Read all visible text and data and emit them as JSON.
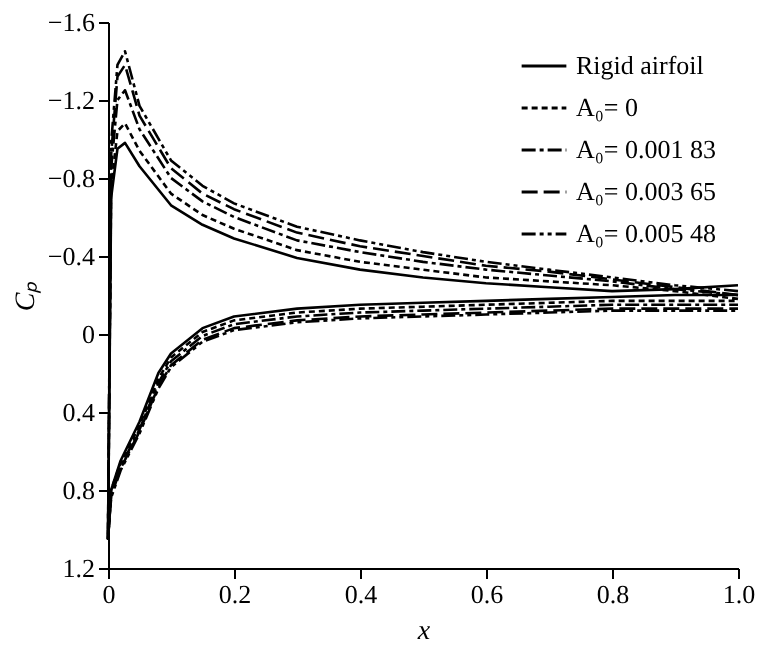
{
  "chart_data": {
    "type": "line",
    "xlabel": "x",
    "ylabel": "Cₚ",
    "xlim": [
      0,
      1.0
    ],
    "xticks": [
      0,
      0.2,
      0.4,
      0.6,
      0.8,
      {
        "value": 1.0,
        "label": "1.0"
      }
    ],
    "ylim": [
      1.2,
      -1.6
    ],
    "yticks": [
      {
        "value": 1.2,
        "label": "1.2"
      },
      0.8,
      0.4,
      0,
      {
        "value": -0.4,
        "label": "−0.4"
      },
      {
        "value": -0.8,
        "label": "−0.8"
      },
      {
        "value": -1.2,
        "label": "−1.2"
      },
      {
        "value": -1.6,
        "label": "−1.6"
      }
    ],
    "legend": "top right",
    "grid": false,
    "series": [
      {
        "name": "Rigid airfoil",
        "color": "#000000",
        "line_style": "solid",
        "x": [
          1.0,
          0.9,
          0.8,
          0.7,
          0.6,
          0.5,
          0.4,
          0.3,
          0.2,
          0.15,
          0.1,
          0.05,
          0.027,
          0.015,
          0.005,
          0,
          0.005,
          0.02,
          0.05,
          0.08,
          0.1,
          0.15,
          0.2,
          0.3,
          0.4,
          0.5,
          0.6,
          0.7,
          0.8,
          0.9,
          1.0
        ],
        "values": [
          -0.25,
          -0.23,
          -0.22,
          -0.24,
          -0.26,
          -0.29,
          -0.33,
          -0.39,
          -0.49,
          -0.56,
          -0.66,
          -0.86,
          -0.98,
          -0.95,
          -0.7,
          1.05,
          0.8,
          0.65,
          0.45,
          0.2,
          0.1,
          -0.03,
          -0.09,
          -0.13,
          -0.15,
          -0.16,
          -0.17,
          -0.18,
          -0.19,
          -0.2,
          -0.2
        ]
      },
      {
        "name": "A₀= 0",
        "color": "#000000",
        "line_style": "dotted",
        "x": [
          1.0,
          0.9,
          0.8,
          0.7,
          0.6,
          0.5,
          0.4,
          0.3,
          0.2,
          0.15,
          0.1,
          0.05,
          0.027,
          0.015,
          0.005,
          0,
          0.005,
          0.02,
          0.05,
          0.08,
          0.1,
          0.15,
          0.2,
          0.3,
          0.4,
          0.5,
          0.6,
          0.7,
          0.8,
          0.9,
          1.0
        ],
        "values": [
          -0.18,
          -0.22,
          -0.25,
          -0.27,
          -0.29,
          -0.33,
          -0.37,
          -0.43,
          -0.54,
          -0.61,
          -0.72,
          -0.94,
          -1.08,
          -1.04,
          -0.75,
          1.05,
          0.8,
          0.66,
          0.47,
          0.23,
          0.12,
          -0.01,
          -0.07,
          -0.11,
          -0.13,
          -0.14,
          -0.15,
          -0.16,
          -0.17,
          -0.17,
          -0.17
        ]
      },
      {
        "name": "A₀= 0.001 83",
        "color": "#000000",
        "line_style": "dashdot",
        "x": [
          1.0,
          0.9,
          0.8,
          0.7,
          0.6,
          0.5,
          0.4,
          0.3,
          0.2,
          0.15,
          0.1,
          0.05,
          0.027,
          0.015,
          0.005,
          0,
          0.005,
          0.02,
          0.05,
          0.08,
          0.1,
          0.15,
          0.2,
          0.3,
          0.4,
          0.5,
          0.6,
          0.7,
          0.8,
          0.9,
          1.0
        ],
        "values": [
          -0.2,
          -0.23,
          -0.27,
          -0.3,
          -0.33,
          -0.37,
          -0.42,
          -0.48,
          -0.6,
          -0.68,
          -0.8,
          -1.05,
          -1.25,
          -1.2,
          -0.85,
          1.05,
          0.82,
          0.68,
          0.49,
          0.25,
          0.14,
          0.01,
          -0.05,
          -0.09,
          -0.11,
          -0.12,
          -0.13,
          -0.14,
          -0.15,
          -0.15,
          -0.15
        ]
      },
      {
        "name": "A₀= 0.003 65",
        "color": "#000000",
        "line_style": "dashed",
        "x": [
          1.0,
          0.9,
          0.8,
          0.7,
          0.6,
          0.5,
          0.4,
          0.3,
          0.2,
          0.15,
          0.1,
          0.05,
          0.027,
          0.015,
          0.005,
          0,
          0.005,
          0.02,
          0.05,
          0.08,
          0.1,
          0.15,
          0.2,
          0.3,
          0.4,
          0.5,
          0.6,
          0.7,
          0.8,
          0.9,
          1.0
        ],
        "values": [
          -0.2,
          -0.24,
          -0.28,
          -0.32,
          -0.35,
          -0.4,
          -0.45,
          -0.52,
          -0.64,
          -0.72,
          -0.85,
          -1.12,
          -1.38,
          -1.32,
          -0.92,
          1.05,
          0.83,
          0.69,
          0.5,
          0.27,
          0.16,
          0.03,
          -0.03,
          -0.07,
          -0.09,
          -0.1,
          -0.11,
          -0.12,
          -0.13,
          -0.13,
          -0.13
        ]
      },
      {
        "name": "A₀= 0.005 48",
        "color": "#000000",
        "line_style": "dashdotdot",
        "x": [
          1.0,
          0.9,
          0.8,
          0.7,
          0.6,
          0.5,
          0.4,
          0.3,
          0.2,
          0.15,
          0.1,
          0.05,
          0.027,
          0.015,
          0.005,
          0,
          0.005,
          0.02,
          0.05,
          0.08,
          0.1,
          0.15,
          0.2,
          0.3,
          0.4,
          0.5,
          0.6,
          0.7,
          0.8,
          0.9,
          1.0
        ],
        "values": [
          -0.22,
          -0.25,
          -0.29,
          -0.33,
          -0.37,
          -0.42,
          -0.48,
          -0.55,
          -0.67,
          -0.76,
          -0.89,
          -1.17,
          -1.45,
          -1.38,
          -0.98,
          1.05,
          0.84,
          0.7,
          0.51,
          0.28,
          0.17,
          0.04,
          -0.02,
          -0.06,
          -0.08,
          -0.09,
          -0.1,
          -0.11,
          -0.12,
          -0.12,
          -0.12
        ]
      }
    ]
  }
}
